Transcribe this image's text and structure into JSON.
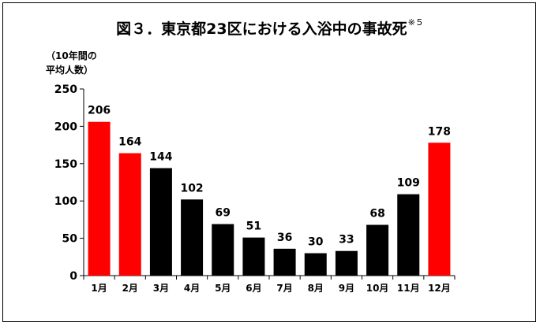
{
  "chart_data": {
    "type": "bar",
    "title": "図３．東京都23区における入浴中の事故死",
    "title_note": "※５",
    "ylabel_line1": "（10年間の",
    "ylabel_line2": "平均人数）",
    "xlabel": "",
    "categories": [
      "1月",
      "2月",
      "3月",
      "4月",
      "5月",
      "6月",
      "7月",
      "8月",
      "9月",
      "10月",
      "11月",
      "12月"
    ],
    "values": [
      206,
      164,
      144,
      102,
      69,
      51,
      36,
      30,
      33,
      68,
      109,
      178
    ],
    "bar_colors": [
      "#ff0000",
      "#ff0000",
      "#000000",
      "#000000",
      "#000000",
      "#000000",
      "#000000",
      "#000000",
      "#000000",
      "#000000",
      "#000000",
      "#ff0000"
    ],
    "ylim": [
      0,
      250
    ],
    "yticks": [
      "0",
      "50",
      "100",
      "150",
      "200",
      "250"
    ],
    "grid": false,
    "legend": "none"
  }
}
